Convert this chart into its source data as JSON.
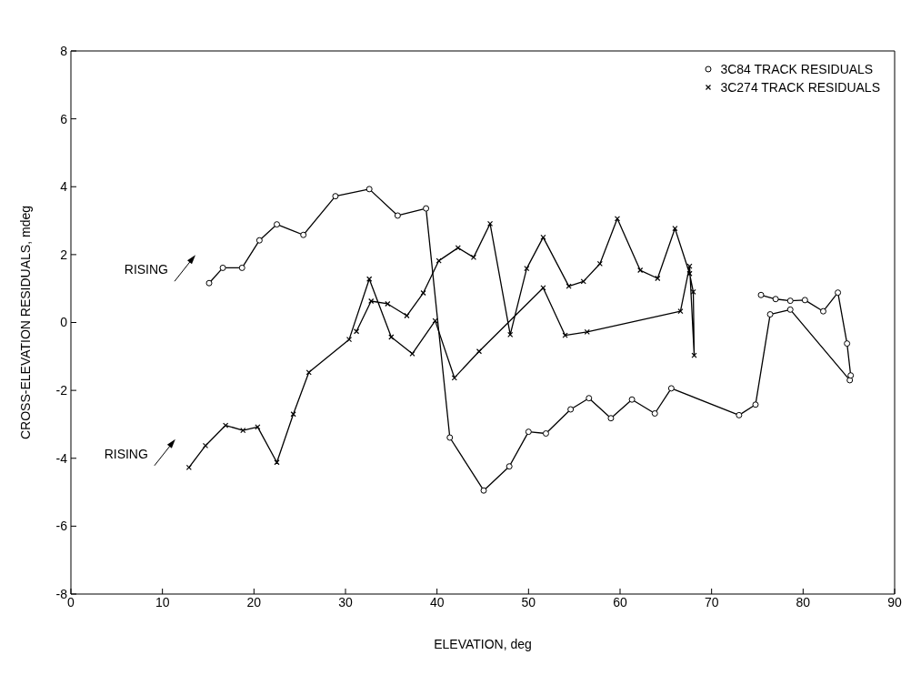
{
  "chart_data": {
    "type": "line",
    "xlabel": "ELEVATION, deg",
    "ylabel": "CROSS-ELEVATION RESIDUALS, mdeg",
    "xlim": [
      0,
      90
    ],
    "xticks": [
      0,
      10,
      20,
      30,
      40,
      50,
      60,
      70,
      80,
      90
    ],
    "ylim": [
      -8,
      8
    ],
    "yticks": [
      -8,
      -6,
      -4,
      -2,
      0,
      2,
      4,
      6,
      8
    ],
    "legend": "top right",
    "annotations": [
      "RISING",
      "RISING"
    ],
    "series": [
      {
        "name": "3C84 TRACK RESIDUALS",
        "color": "#000000",
        "marker": "circle",
        "x": [
          15.1,
          16.6,
          18.7,
          20.6,
          22.5,
          25.4,
          28.9,
          32.6,
          35.7,
          38.8,
          41.4,
          45.1,
          47.9,
          50.0,
          51.9,
          54.6,
          56.6,
          59.0,
          61.3,
          63.8,
          65.6,
          73.0,
          74.8,
          76.4,
          78.6,
          85.1,
          85.2,
          84.8,
          83.8,
          82.2,
          80.2,
          78.6,
          77.0,
          75.4
        ],
        "values": [
          1.16,
          1.61,
          1.61,
          2.42,
          2.89,
          2.58,
          3.72,
          3.93,
          3.15,
          3.36,
          -3.39,
          -4.95,
          -4.24,
          -3.22,
          -3.27,
          -2.56,
          -2.23,
          -2.82,
          -2.27,
          -2.68,
          -1.94,
          -2.73,
          -2.42,
          0.24,
          0.38,
          -1.7,
          -1.56,
          -0.62,
          0.88,
          0.33,
          0.66,
          0.64,
          0.69,
          0.81
        ]
      },
      {
        "name": "3C274 TRACK RESIDUALS",
        "color": "#000000",
        "marker": "cross",
        "x": [
          12.9,
          14.7,
          16.9,
          18.8,
          20.4,
          22.5,
          24.3,
          26.0,
          30.4,
          32.6,
          35.0,
          37.3,
          39.8,
          41.9,
          44.6,
          51.6,
          54.0,
          56.4,
          66.6,
          67.6,
          68.1,
          68.0,
          67.6,
          66.0,
          64.1,
          62.2,
          59.7,
          57.8,
          56.0,
          54.4,
          51.6,
          49.8,
          48.0,
          45.8,
          44.0,
          42.3,
          40.2,
          38.5,
          36.7,
          34.6,
          32.8,
          31.2
        ],
        "values": [
          -4.27,
          -3.63,
          -3.03,
          -3.18,
          -3.08,
          -4.12,
          -2.7,
          -1.47,
          -0.5,
          1.28,
          -0.43,
          -0.92,
          0.05,
          -1.63,
          -0.85,
          1.02,
          -0.38,
          -0.28,
          0.33,
          1.66,
          -0.97,
          0.9,
          1.44,
          2.77,
          1.3,
          1.54,
          3.06,
          1.73,
          1.21,
          1.07,
          2.51,
          1.59,
          -0.36,
          2.91,
          1.92,
          2.2,
          1.82,
          0.87,
          0.2,
          0.55,
          0.63,
          -0.26
        ]
      }
    ]
  }
}
